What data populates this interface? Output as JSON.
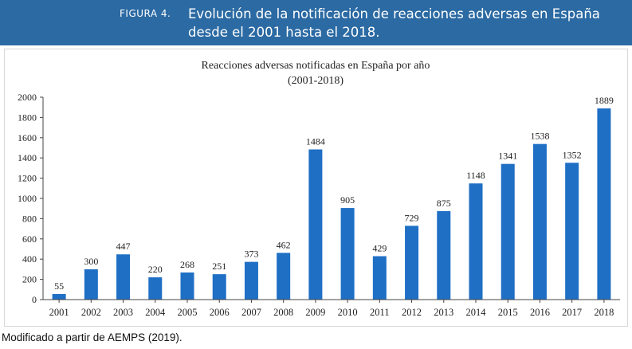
{
  "figure": {
    "label": "FIGURA 4.",
    "title": "Evolución de la notificación de reacciones adversas en España desde el 2001 hasta el 2018."
  },
  "source_note": "Modificado a partir de AEMPS (2019).",
  "colors": {
    "banner": "#2b6aa3",
    "bar": "#1f6fc5"
  },
  "chart_data": {
    "type": "bar",
    "title": "Reacciones adversas notificadas en España por año",
    "subtitle": "(2001-2018)",
    "xlabel": "",
    "ylabel": "",
    "categories": [
      "2001",
      "2002",
      "2003",
      "2004",
      "2005",
      "2006",
      "2007",
      "2008",
      "2009",
      "2010",
      "2011",
      "2012",
      "2013",
      "2014",
      "2015",
      "2016",
      "2017",
      "2018"
    ],
    "values": [
      55,
      300,
      447,
      220,
      268,
      251,
      373,
      462,
      1484,
      905,
      429,
      729,
      875,
      1148,
      1341,
      1538,
      1352,
      1889
    ],
    "ylim": [
      0,
      2000
    ],
    "yticks": [
      0,
      200,
      400,
      600,
      800,
      1000,
      1200,
      1400,
      1600,
      1800,
      2000
    ],
    "data_labels": true,
    "grid": false,
    "legend": "none"
  }
}
